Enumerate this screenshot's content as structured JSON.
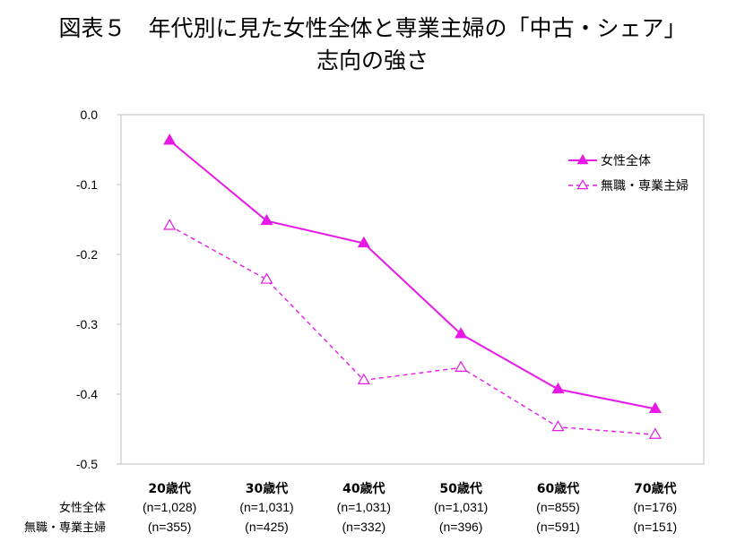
{
  "title": {
    "line1": "図表５　年代別に見た女性全体と専業主婦の「中古・シェア」",
    "line2": "志向の強さ"
  },
  "colors": {
    "series": "#e619e6",
    "axis": "#bfbfbf"
  },
  "chart_data": {
    "type": "line",
    "categories": [
      "20歳代",
      "30歳代",
      "40歳代",
      "50歳代",
      "60歳代",
      "70歳代"
    ],
    "ylim": [
      -0.5,
      0.0
    ],
    "yticks": [
      "0.0",
      "-0.1",
      "-0.2",
      "-0.3",
      "-0.4",
      "-0.5"
    ],
    "ytick_values": [
      0.0,
      -0.1,
      -0.2,
      -0.3,
      -0.4,
      -0.5
    ],
    "grid": false,
    "legend_position": "top-right",
    "series": [
      {
        "name": "女性全体",
        "style": "solid",
        "marker": "filled-triangle",
        "values": [
          -0.037,
          -0.152,
          -0.184,
          -0.314,
          -0.393,
          -0.421
        ]
      },
      {
        "name": "無職・専業主婦",
        "style": "dashed",
        "marker": "hollow-triangle",
        "values": [
          -0.159,
          -0.236,
          -0.38,
          -0.362,
          -0.447,
          -0.458
        ]
      }
    ],
    "sample_rows": [
      {
        "label": "女性全体",
        "values": [
          "(n=1,028)",
          "(n=1,031)",
          "(n=1,031)",
          "(n=1,031)",
          "(n=855)",
          "(n=176)"
        ]
      },
      {
        "label": "無職・専業主婦",
        "values": [
          "(n=355)",
          "(n=425)",
          "(n=332)",
          "(n=396)",
          "(n=591)",
          "(n=151)"
        ]
      }
    ]
  }
}
